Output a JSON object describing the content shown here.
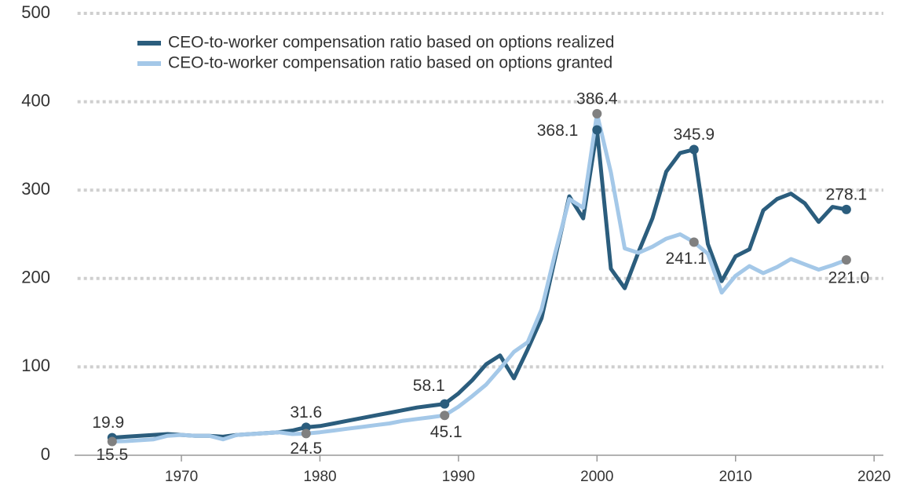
{
  "chart_data": {
    "type": "line",
    "x": [
      1965,
      1966,
      1967,
      1968,
      1969,
      1970,
      1971,
      1972,
      1973,
      1974,
      1975,
      1976,
      1977,
      1978,
      1979,
      1980,
      1981,
      1982,
      1983,
      1984,
      1985,
      1986,
      1987,
      1988,
      1989,
      1990,
      1991,
      1992,
      1993,
      1994,
      1995,
      1996,
      1997,
      1998,
      1999,
      2000,
      2001,
      2002,
      2003,
      2004,
      2005,
      2006,
      2007,
      2008,
      2009,
      2010,
      2011,
      2012,
      2013,
      2014,
      2015,
      2016,
      2017,
      2018
    ],
    "series": [
      {
        "name": "CEO-to-worker compensation ratio based on options realized",
        "color": "#2b5d7d",
        "values": [
          19.9,
          21,
          22,
          23,
          24,
          23,
          22,
          22,
          21,
          23,
          24,
          25,
          26,
          28,
          31.6,
          33,
          36,
          39,
          42,
          45,
          48,
          51,
          54,
          56,
          58.1,
          70,
          85,
          103,
          113,
          87,
          120,
          155,
          225,
          293,
          268,
          368.1,
          211,
          189,
          230,
          268,
          321,
          342,
          345.9,
          239,
          197,
          225,
          233,
          277,
          290,
          296,
          285,
          264,
          281,
          278.1
        ],
        "value_labels": [
          null,
          null,
          null,
          null,
          null,
          null,
          null,
          null,
          null,
          null,
          null,
          null,
          null,
          null,
          null,
          null,
          null,
          null,
          null,
          null,
          null,
          null,
          null,
          null,
          null,
          null,
          null,
          null,
          null,
          null,
          null,
          null,
          null,
          null,
          null,
          null,
          null,
          null,
          null,
          null,
          null,
          null,
          null,
          null,
          null,
          null,
          null,
          null,
          null,
          null,
          null,
          null,
          null,
          null
        ]
      },
      {
        "name": "CEO-to-worker compensation ratio based on options granted",
        "color": "#a4c8e8",
        "marker_color": "#808080",
        "values": [
          15.5,
          16,
          17,
          18,
          22,
          23,
          22,
          22,
          18,
          23,
          24,
          25,
          26,
          24,
          24.5,
          26,
          28,
          30,
          32,
          34,
          36,
          39,
          41,
          43,
          45.1,
          55,
          67,
          80,
          98,
          117,
          128,
          165,
          230,
          290,
          280,
          386.4,
          320,
          234,
          229,
          236,
          245,
          250,
          241.1,
          228,
          184,
          203,
          214,
          206,
          213,
          222,
          216,
          210,
          215,
          221
        ],
        "value_labels": [
          null,
          null,
          null,
          null,
          null,
          null,
          null,
          null,
          null,
          null,
          null,
          null,
          null,
          null,
          null,
          null,
          null,
          null,
          null,
          null,
          null,
          null,
          null,
          null,
          null,
          null,
          null,
          null,
          null,
          null,
          null,
          null,
          null,
          null,
          null,
          null,
          null,
          null,
          null,
          null,
          null,
          null,
          null,
          null,
          null,
          null,
          null,
          null,
          null,
          null,
          null,
          null,
          null,
          "221.0"
        ]
      }
    ],
    "labeled": [
      [
        1965,
        1979,
        1989,
        2000,
        2007,
        2018
      ],
      [
        1965,
        1979,
        1989,
        2000,
        2007,
        2018
      ]
    ],
    "xlim": [
      1962.5,
      2020.5
    ],
    "xticks": [
      1970,
      1980,
      1990,
      2000,
      2010,
      2020
    ],
    "ylim": [
      0,
      500
    ],
    "yticks": [
      0,
      100,
      200,
      300,
      400,
      500
    ],
    "grid": true
  }
}
